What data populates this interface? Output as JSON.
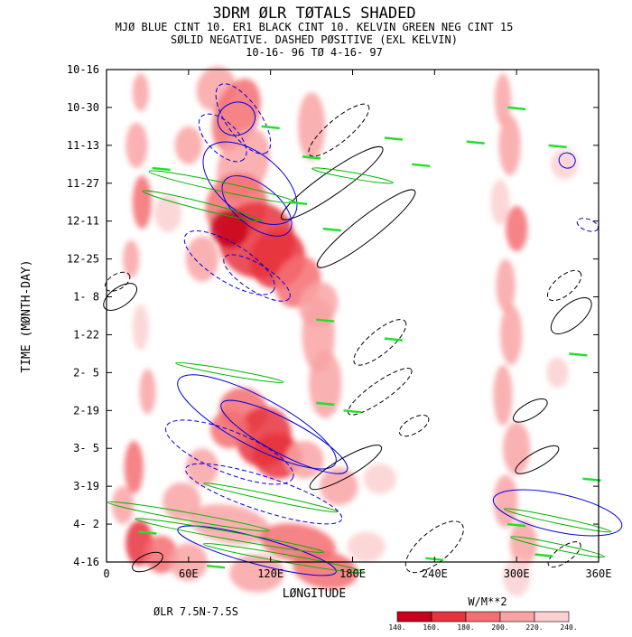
{
  "chart_data": {
    "type": "heatmap",
    "title": "3DRM ØLR TØTALS SHADED",
    "subtitle_lines": [
      "MJØ BLUE CINT 10. ER1 BLACK CINT 10. KELVIN GREEN NEG CINT 15",
      "SØLID NEGATIVE. DASHED PØSITIVE (EXL KELVIN)",
      "10-16-  96 TØ  4-16-  97"
    ],
    "xlabel": "LØNGITUDE",
    "ylabel": "TIME (MØNTH-DAY)",
    "x_ticks": [
      "0",
      "60E",
      "120E",
      "180E",
      "240E",
      "300E",
      "360E"
    ],
    "y_ticks": [
      "10-16",
      "10-30",
      "11-13",
      "11-27",
      "12-11",
      "12-25",
      "1- 8",
      "1-22",
      "2- 5",
      "2-19",
      "3- 5",
      "3-19",
      "4- 2",
      "4-16"
    ],
    "xlim": [
      0,
      360
    ],
    "region_label": "ØLR 7.5N-7.5S",
    "colorbar": {
      "unit": "W/M**2",
      "levels": [
        "140.",
        "160.",
        "180.",
        "200.",
        "220.",
        "240."
      ],
      "colors": [
        "#c8001e",
        "#e8323c",
        "#f46e72",
        "#f9a3a4",
        "#fcd0d0"
      ]
    },
    "colors": {
      "mjo": "#0000e6",
      "er1": "#000000",
      "kelvin": "#00b400",
      "kelvin_bright": "#22e02a"
    }
  }
}
